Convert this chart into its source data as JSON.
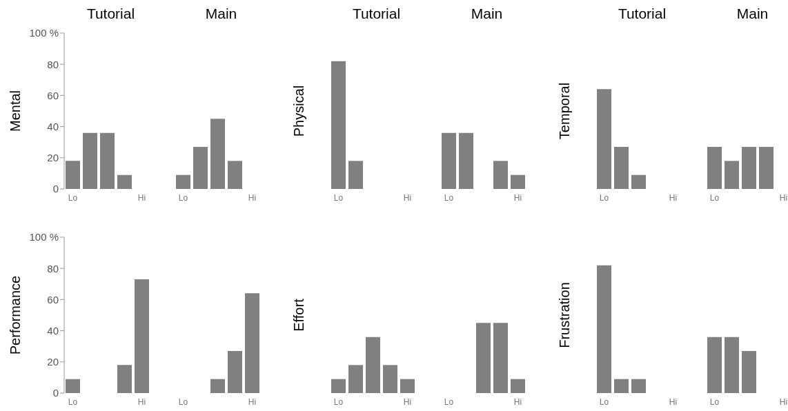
{
  "chart_data": [
    {
      "type": "bar",
      "title": "Tutorial",
      "ylabel": "Mental",
      "categories": [
        "Lo",
        null,
        null,
        null,
        "Hi"
      ],
      "values": [
        18,
        36,
        36,
        9,
        0
      ],
      "color": "#808080",
      "ylim": [
        0,
        100
      ],
      "yticks": [
        0,
        20,
        40,
        60,
        80,
        {
          "value": 100,
          "label": "100 %"
        }
      ]
    },
    {
      "type": "bar",
      "title": "Main",
      "categories": [
        "Lo",
        null,
        null,
        null,
        "Hi"
      ],
      "values": [
        9,
        27,
        45,
        18,
        0
      ],
      "color": "#808080",
      "ylim": [
        0,
        100
      ],
      "yticks": [
        0,
        20,
        40,
        60,
        80,
        100
      ],
      "tick_labels": "x"
    },
    {
      "type": "bar",
      "title": "Tutorial",
      "ylabel": "Physical",
      "categories": [
        "Lo",
        null,
        null,
        null,
        "Hi"
      ],
      "values": [
        82,
        18,
        0,
        0,
        0
      ],
      "color": "#808080",
      "ylim": [
        0,
        100
      ],
      "yticks": [
        0,
        20,
        40,
        60,
        80,
        100
      ],
      "tick_labels": "x"
    },
    {
      "type": "bar",
      "title": "Main",
      "categories": [
        "Lo",
        null,
        null,
        null,
        "Hi"
      ],
      "values": [
        36,
        36,
        0,
        18,
        9
      ],
      "color": "#808080",
      "ylim": [
        0,
        100
      ],
      "yticks": [
        0,
        20,
        40,
        60,
        80,
        100
      ],
      "tick_labels": "x"
    },
    {
      "type": "bar",
      "title": "Tutorial",
      "ylabel": "Temporal",
      "categories": [
        "Lo",
        null,
        null,
        null,
        "Hi"
      ],
      "values": [
        64,
        27,
        9,
        0,
        0
      ],
      "color": "#808080",
      "ylim": [
        0,
        100
      ],
      "yticks": [
        0,
        20,
        40,
        60,
        80,
        100
      ],
      "tick_labels": "x"
    },
    {
      "type": "bar",
      "title": "Main",
      "categories": [
        "Lo",
        null,
        null,
        null,
        "Hi"
      ],
      "values": [
        27,
        18,
        27,
        27,
        0
      ],
      "color": "#808080",
      "ylim": [
        0,
        100
      ],
      "yticks": [
        0,
        20,
        40,
        60,
        80,
        100
      ],
      "tick_labels": "x"
    },
    {
      "type": "bar",
      "ylabel": "Performance",
      "categories": [
        "Lo",
        null,
        null,
        null,
        "Hi"
      ],
      "values": [
        9,
        0,
        0,
        18,
        73
      ],
      "color": "#808080",
      "ylim": [
        0,
        100
      ],
      "yticks": [
        0,
        20,
        40,
        60,
        80,
        {
          "value": 100,
          "label": "100 %"
        }
      ]
    },
    {
      "type": "bar",
      "categories": [
        "Lo",
        null,
        null,
        null,
        "Hi"
      ],
      "values": [
        0,
        0,
        9,
        27,
        64
      ],
      "color": "#808080",
      "ylim": [
        0,
        100
      ],
      "yticks": [
        0,
        20,
        40,
        60,
        80,
        100
      ],
      "tick_labels": "x"
    },
    {
      "type": "bar",
      "ylabel": "Effort",
      "categories": [
        "Lo",
        null,
        null,
        null,
        "Hi"
      ],
      "values": [
        9,
        18,
        36,
        18,
        9
      ],
      "color": "#808080",
      "ylim": [
        0,
        100
      ],
      "yticks": [
        0,
        20,
        40,
        60,
        80,
        100
      ],
      "tick_labels": "x"
    },
    {
      "type": "bar",
      "categories": [
        "Lo",
        null,
        null,
        null,
        "Hi"
      ],
      "values": [
        0,
        0,
        45,
        45,
        9
      ],
      "color": "#808080",
      "ylim": [
        0,
        100
      ],
      "yticks": [
        0,
        20,
        40,
        60,
        80,
        100
      ],
      "tick_labels": "x"
    },
    {
      "type": "bar",
      "ylabel": "Frustration",
      "categories": [
        "Lo",
        null,
        null,
        null,
        "Hi"
      ],
      "values": [
        82,
        9,
        9,
        0,
        0
      ],
      "color": "#808080",
      "ylim": [
        0,
        100
      ],
      "yticks": [
        0,
        20,
        40,
        60,
        80,
        100
      ],
      "tick_labels": "x"
    },
    {
      "type": "bar",
      "categories": [
        "Lo",
        null,
        null,
        null,
        "Hi"
      ],
      "values": [
        36,
        36,
        27,
        0,
        0
      ],
      "color": "#808080",
      "ylim": [
        0,
        100
      ],
      "yticks": [
        0,
        20,
        40,
        60,
        80,
        100
      ],
      "tick_labels": "x"
    }
  ]
}
